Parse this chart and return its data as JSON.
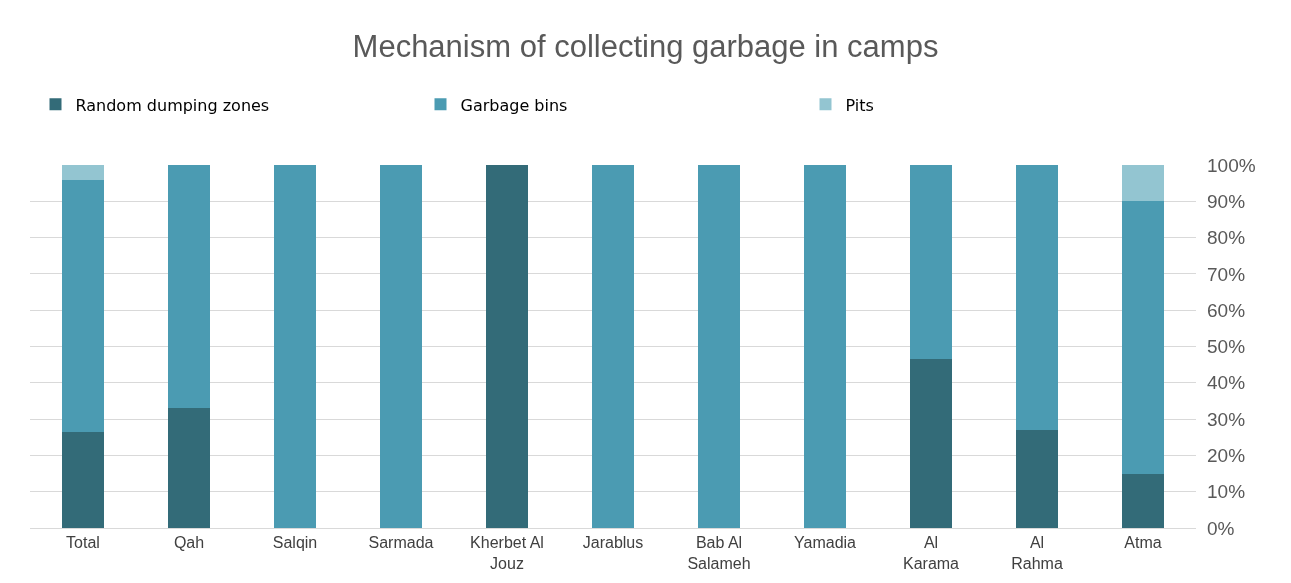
{
  "chart_data": {
    "type": "bar",
    "title": "Mechanism of collecting garbage in camps",
    "stacked": true,
    "legend": "top",
    "grid": "y",
    "categories": [
      "Total",
      "Qah",
      "Salqin",
      "Sarmada",
      "Kherbet Al Jouz",
      "Jarablus",
      "Bab Al Salameh",
      "Yamadia",
      "Al Karama",
      "Al Rahma",
      "Atma"
    ],
    "series": [
      {
        "name": "Random dumping zones",
        "color": "#336b78",
        "values": [
          26.5,
          33,
          0,
          0,
          100,
          0,
          0,
          0,
          46.5,
          27,
          15
        ]
      },
      {
        "name": "Garbage bins",
        "color": "#4b9bb2",
        "values": [
          69.5,
          67,
          100,
          100,
          0,
          100,
          100,
          100,
          53.5,
          73,
          75
        ]
      },
      {
        "name": "Pits",
        "color": "#93c5d1",
        "values": [
          4,
          0,
          0,
          0,
          0,
          0,
          0,
          0,
          0,
          0,
          10
        ]
      }
    ],
    "ylim": [
      0,
      100
    ],
    "yticks": [
      {
        "value": 0,
        "label": "0%"
      },
      {
        "value": 10,
        "label": "10%"
      },
      {
        "value": 20,
        "label": "20%"
      },
      {
        "value": 30,
        "label": "30%"
      },
      {
        "value": 40,
        "label": "40%"
      },
      {
        "value": 50,
        "label": "50%"
      },
      {
        "value": 60,
        "label": "60%"
      },
      {
        "value": 70,
        "label": "70%"
      },
      {
        "value": 80,
        "label": "80%"
      },
      {
        "value": 90,
        "label": "90%"
      },
      {
        "value": 100,
        "label": "100%"
      }
    ]
  }
}
